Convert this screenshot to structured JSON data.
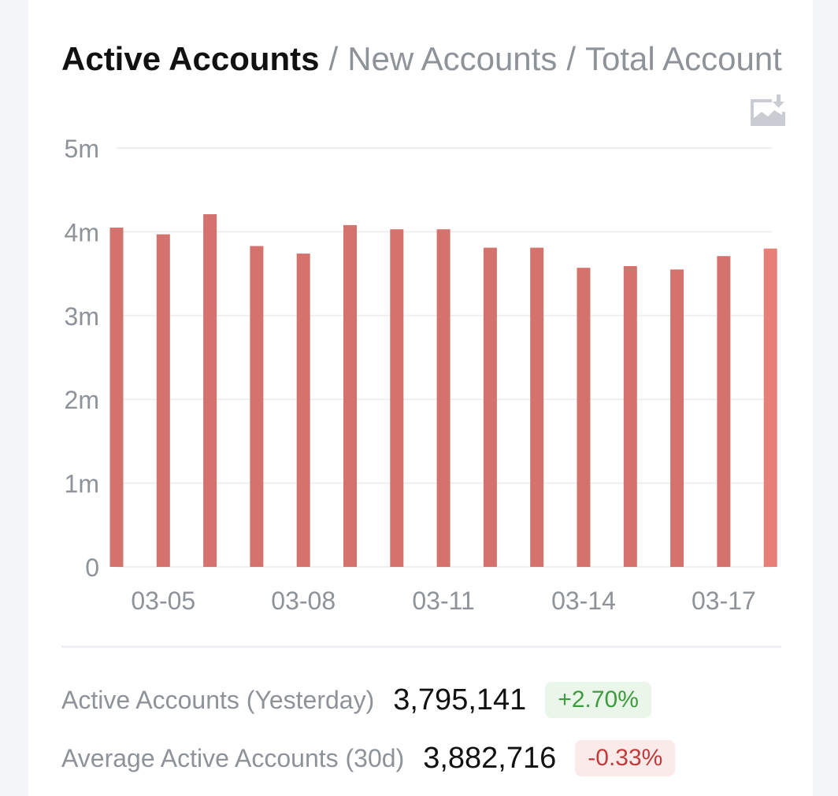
{
  "tabs": {
    "active": "Active Accounts",
    "separator": "/",
    "items": [
      "New Accounts",
      "Total Account"
    ]
  },
  "toolbar": {
    "download_icon": "image-download-icon"
  },
  "chart_data": {
    "type": "bar",
    "categories": [
      "03-04",
      "03-05",
      "03-06",
      "03-07",
      "03-08",
      "03-09",
      "03-10",
      "03-11",
      "03-12",
      "03-13",
      "03-14",
      "03-15",
      "03-16",
      "03-17",
      "03-18"
    ],
    "x_tick_labels": [
      "03-05",
      "03-08",
      "03-11",
      "03-14",
      "03-17"
    ],
    "y_tick_labels": [
      "0",
      "1m",
      "2m",
      "3m",
      "4m",
      "5m"
    ],
    "values": [
      4050000,
      3970000,
      4210000,
      3830000,
      3740000,
      4080000,
      4030000,
      4030000,
      3810000,
      3810000,
      3570000,
      3590000,
      3550000,
      3710000,
      3800000
    ],
    "ylim": [
      0,
      5000000
    ],
    "grid": true,
    "colors": {
      "bar": "#d4736d",
      "bar_last": "#e77f79",
      "grid": "#eeeff2",
      "axis_text": "#8e9299"
    }
  },
  "stats": [
    {
      "label": "Active Accounts (Yesterday)",
      "value": "3,795,141",
      "change": "+2.70%",
      "direction": "up"
    },
    {
      "label": "Average Active Accounts (30d)",
      "value": "3,882,716",
      "change": "-0.33%",
      "direction": "down"
    }
  ]
}
